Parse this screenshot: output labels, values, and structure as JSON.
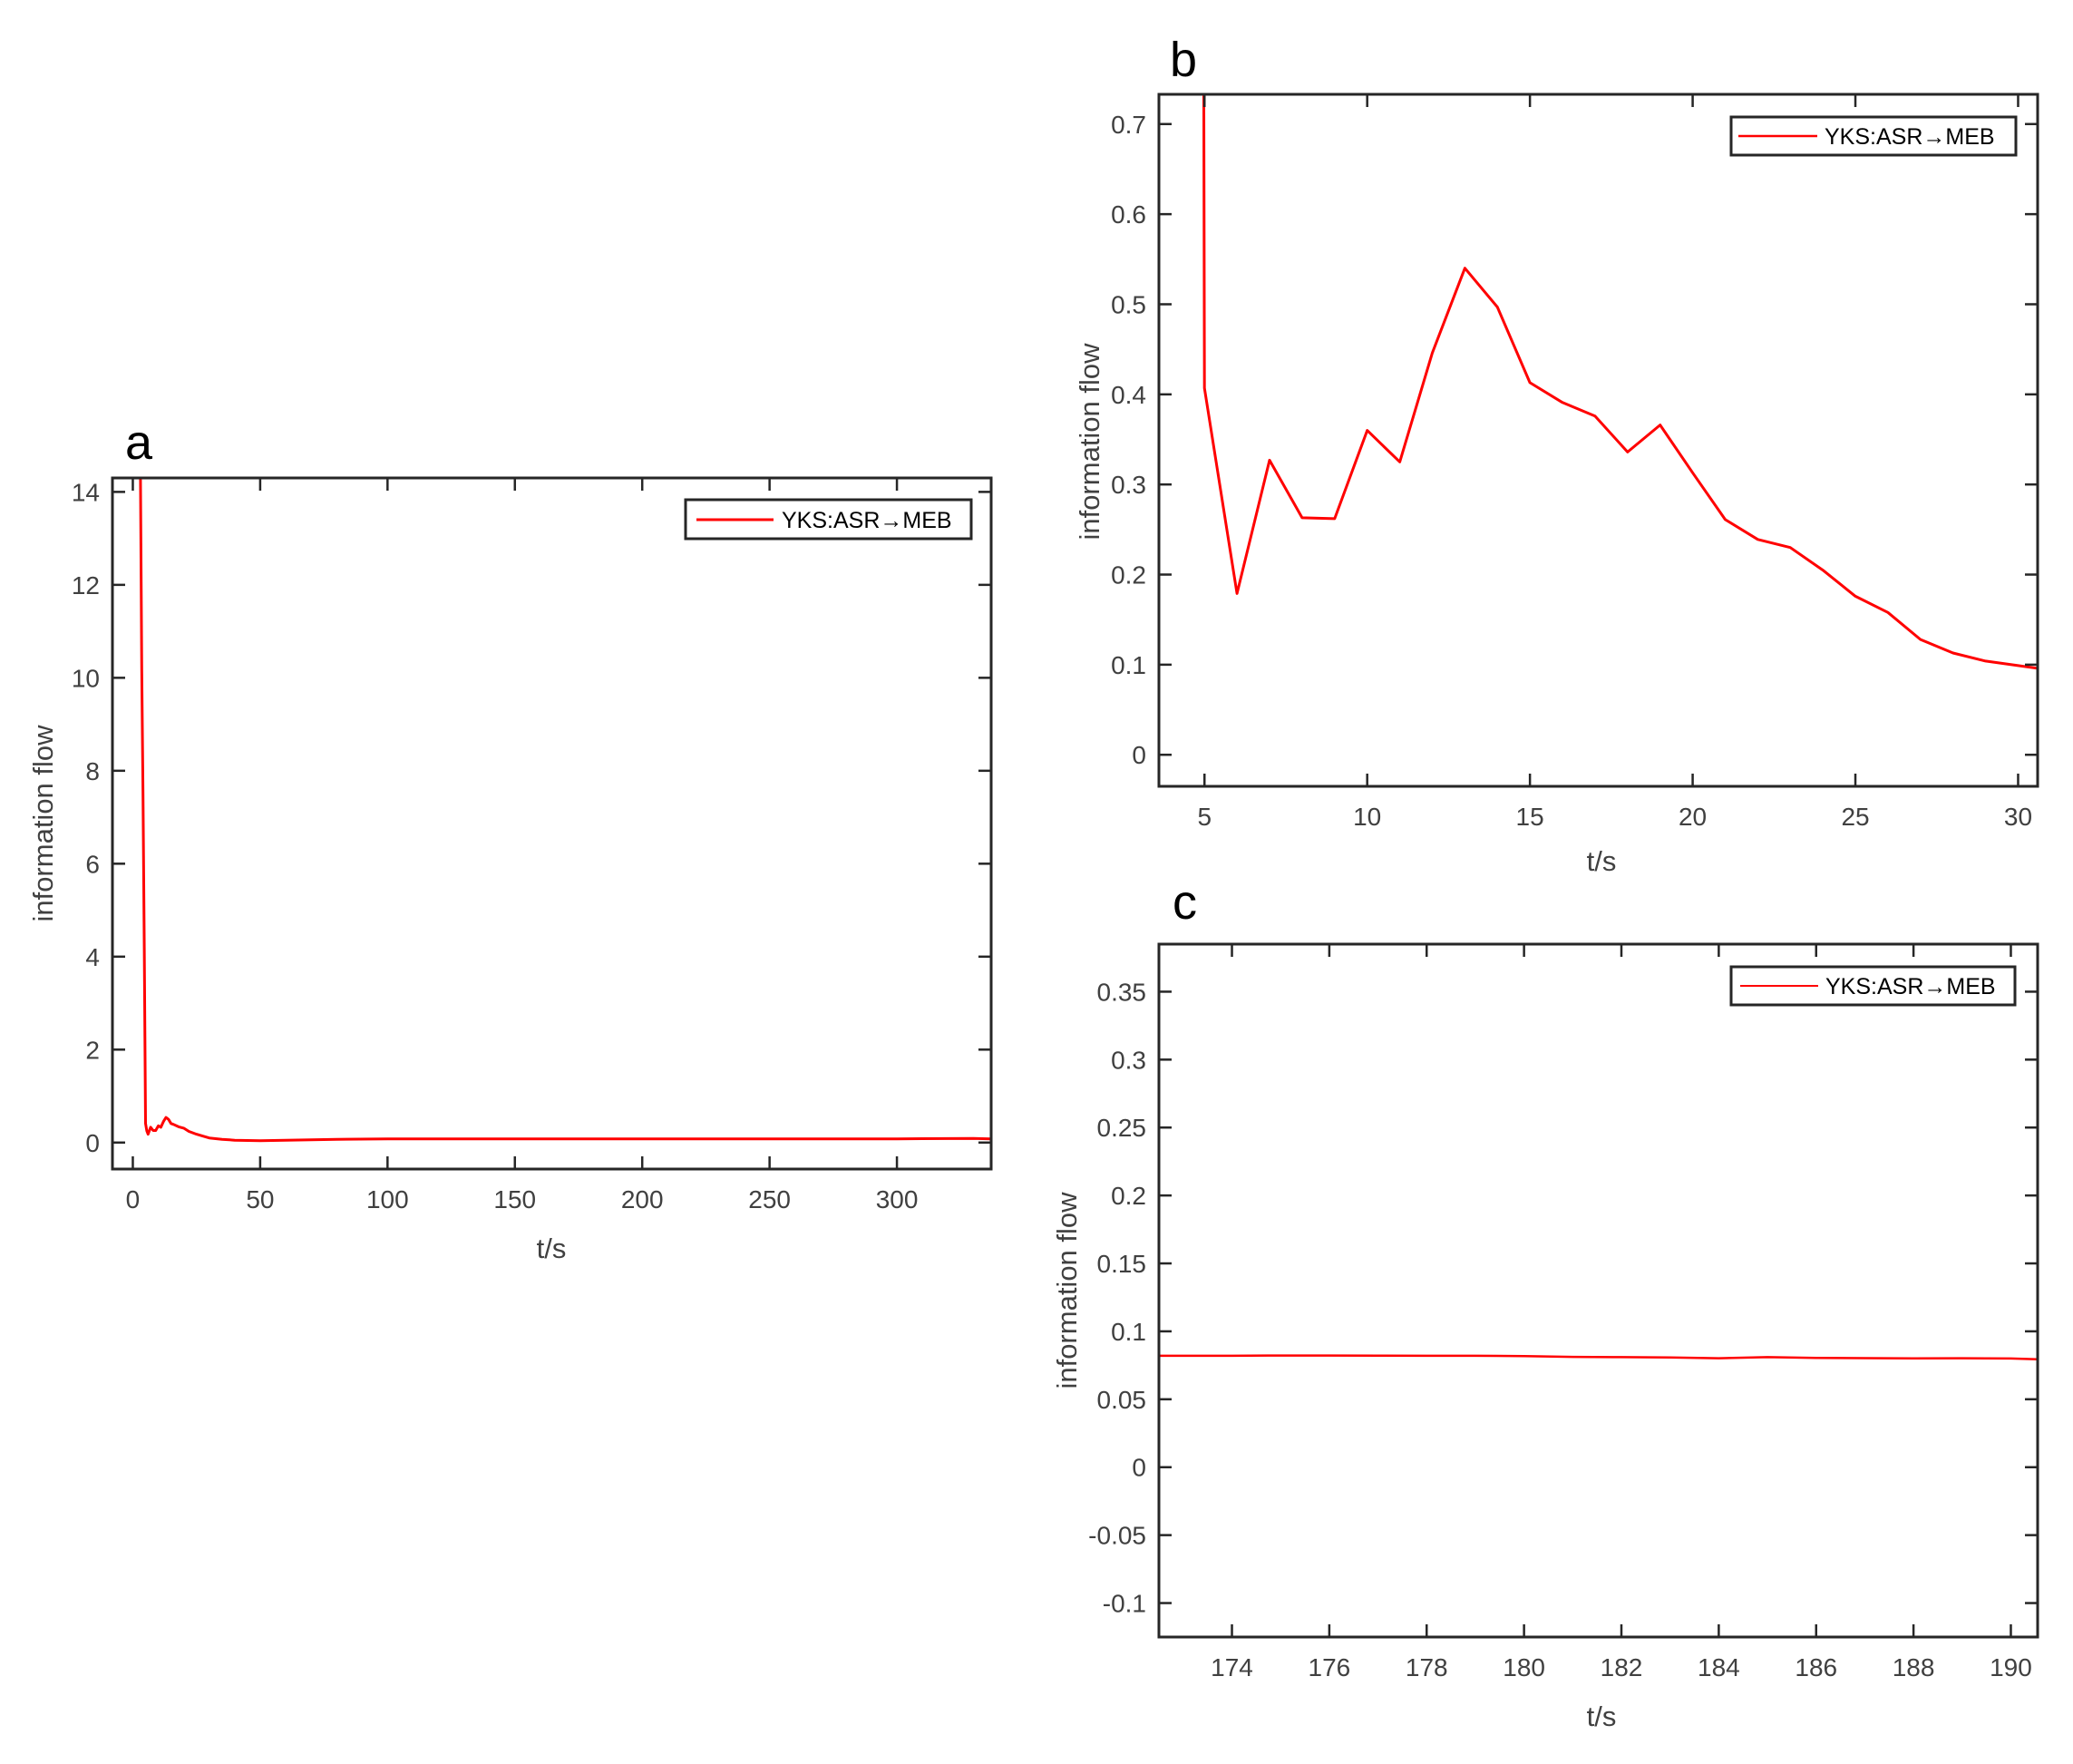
{
  "figure": {
    "panels": [
      "a",
      "b",
      "c"
    ]
  },
  "chart_data": [
    {
      "panel": "a",
      "type": "line",
      "title": "",
      "xlabel": "t/s",
      "ylabel": "information flow",
      "xlim": [
        -8,
        337
      ],
      "ylim": [
        -0.57,
        14.3
      ],
      "xticks": [
        0,
        50,
        100,
        150,
        200,
        250,
        300
      ],
      "yticks": [
        0,
        2,
        4,
        6,
        8,
        10,
        12,
        14
      ],
      "grid": false,
      "legend": {
        "position": "upper right",
        "entries": [
          "YKS:ASR→MEB"
        ]
      },
      "series": [
        {
          "name": "YKS:ASR→MEB",
          "color": "#ff0000",
          "x": [
            3,
            3.5,
            4,
            4.5,
            5,
            5.5,
            6,
            7,
            8,
            9,
            10,
            11,
            12,
            13,
            14,
            15,
            16,
            18,
            20,
            22,
            25,
            28,
            30,
            35,
            40,
            50,
            60,
            80,
            100,
            150,
            200,
            250,
            300,
            330,
            337
          ],
          "y": [
            14.3,
            10.2,
            7.5,
            4.2,
            0.41,
            0.25,
            0.18,
            0.33,
            0.26,
            0.26,
            0.36,
            0.33,
            0.45,
            0.54,
            0.5,
            0.41,
            0.39,
            0.34,
            0.31,
            0.24,
            0.18,
            0.13,
            0.1,
            0.07,
            0.05,
            0.04,
            0.05,
            0.07,
            0.08,
            0.08,
            0.08,
            0.08,
            0.08,
            0.09,
            0.08
          ]
        }
      ]
    },
    {
      "panel": "b",
      "type": "line",
      "title": "",
      "xlabel": "t/s",
      "ylabel": "information flow",
      "xlim": [
        3.6,
        30.6
      ],
      "ylim": [
        -0.035,
        0.733
      ],
      "xticks": [
        5,
        10,
        15,
        20,
        25,
        30
      ],
      "yticks": [
        0,
        0.1,
        0.2,
        0.3,
        0.4,
        0.5,
        0.6,
        0.7
      ],
      "grid": false,
      "legend": {
        "position": "upper right",
        "entries": [
          "YKS:ASR→MEB"
        ]
      },
      "series": [
        {
          "name": "YKS:ASR→MEB",
          "color": "#ff0000",
          "x": [
            4.98,
            5.0,
            6,
            7,
            8,
            9,
            10,
            11,
            12,
            13,
            14,
            15,
            16,
            17,
            18,
            19,
            20,
            21,
            22,
            23,
            24,
            25,
            26,
            27,
            28,
            29,
            30,
            30.6
          ],
          "y": [
            0.733,
            0.407,
            0.179,
            0.327,
            0.263,
            0.262,
            0.36,
            0.325,
            0.446,
            0.54,
            0.497,
            0.413,
            0.391,
            0.376,
            0.336,
            0.366,
            0.313,
            0.261,
            0.239,
            0.23,
            0.205,
            0.176,
            0.158,
            0.128,
            0.113,
            0.104,
            0.099,
            0.096
          ]
        }
      ]
    },
    {
      "panel": "c",
      "type": "line",
      "title": "",
      "xlabel": "t/s",
      "ylabel": "information flow",
      "xlim": [
        172.5,
        190.55
      ],
      "ylim": [
        -0.125,
        0.385
      ],
      "xticks": [
        174,
        176,
        178,
        180,
        182,
        184,
        186,
        188,
        190
      ],
      "yticks": [
        -0.1,
        -0.05,
        0,
        0.05,
        0.1,
        0.15,
        0.2,
        0.25,
        0.3,
        0.35
      ],
      "grid": false,
      "legend": {
        "position": "upper right",
        "entries": [
          "YKS:ASR→MEB"
        ]
      },
      "series": [
        {
          "name": "YKS:ASR→MEB",
          "color": "#ff0000",
          "x": [
            172.5,
            174,
            175,
            176,
            177,
            178,
            179,
            180,
            181,
            182,
            183,
            184,
            185,
            186,
            187,
            188,
            189,
            190,
            190.55
          ],
          "y": [
            0.082,
            0.082,
            0.0822,
            0.0822,
            0.0821,
            0.082,
            0.082,
            0.0818,
            0.0812,
            0.081,
            0.0808,
            0.0802,
            0.081,
            0.0805,
            0.0803,
            0.0801,
            0.0802,
            0.08,
            0.0795
          ]
        }
      ]
    }
  ],
  "panels": {
    "a": {
      "letter": "a",
      "xlabel": "t/s",
      "ylabel": "information flow",
      "legend_label": "YKS:ASR→MEB",
      "xtick_labels": [
        "0",
        "50",
        "100",
        "150",
        "200",
        "250",
        "300"
      ],
      "ytick_labels": [
        "0",
        "2",
        "4",
        "6",
        "8",
        "10",
        "12",
        "14"
      ]
    },
    "b": {
      "letter": "b",
      "xlabel": "t/s",
      "ylabel": "information flow",
      "legend_label": "YKS:ASR→MEB",
      "xtick_labels": [
        "5",
        "10",
        "15",
        "20",
        "25",
        "30"
      ],
      "ytick_labels": [
        "0",
        "0.1",
        "0.2",
        "0.3",
        "0.4",
        "0.5",
        "0.6",
        "0.7"
      ]
    },
    "c": {
      "letter": "c",
      "xlabel": "t/s",
      "ylabel": "information flow",
      "legend_label": "YKS:ASR→MEB",
      "xtick_labels": [
        "174",
        "176",
        "178",
        "180",
        "182",
        "184",
        "186",
        "188",
        "190"
      ],
      "ytick_labels": [
        "-0.1",
        "-0.05",
        "0",
        "0.05",
        "0.1",
        "0.15",
        "0.2",
        "0.25",
        "0.3",
        "0.35"
      ]
    }
  },
  "colors": {
    "series": "#ff0000",
    "axes": "#262626",
    "ticks_text": "#404040"
  }
}
